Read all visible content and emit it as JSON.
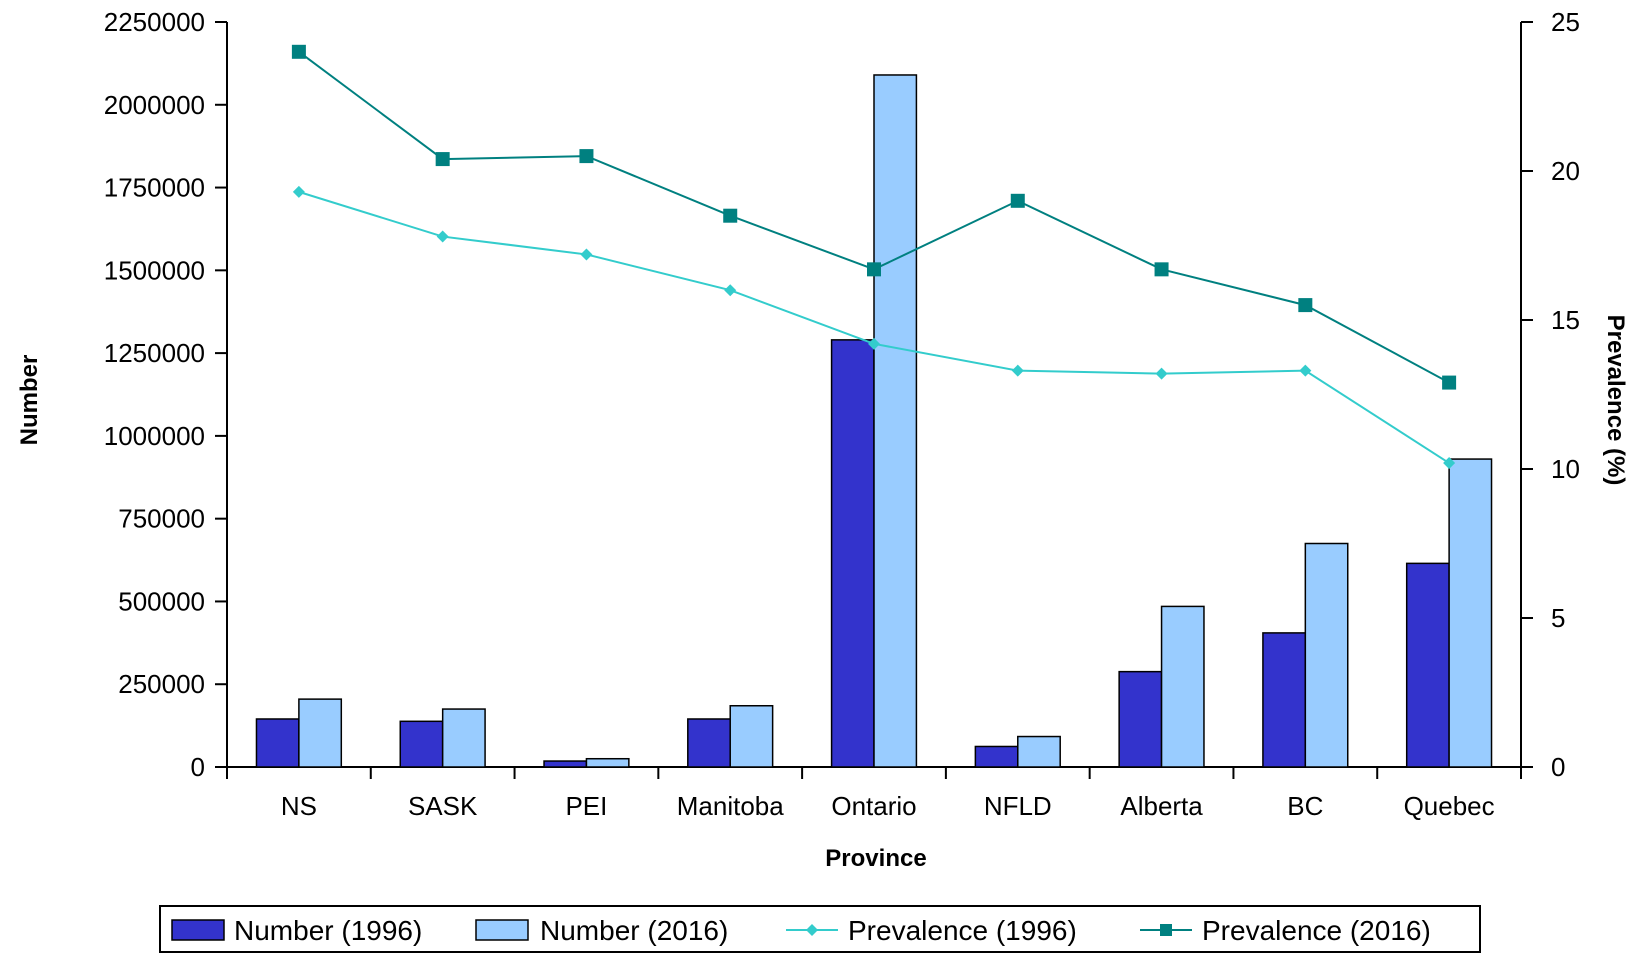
{
  "chart_data": {
    "type": "bar",
    "categories": [
      "NS",
      "SASK",
      "PEI",
      "Manitoba",
      "Ontario",
      "NFLD",
      "Alberta",
      "BC",
      "Quebec"
    ],
    "xlabel": "Province",
    "ylabel": "Number",
    "y2label": "Prevalence (%)",
    "ylim": [
      0,
      2250000
    ],
    "y2lim": [
      0,
      25
    ],
    "yticks": [
      "0",
      "250000",
      "500000",
      "750000",
      "1000000",
      "1250000",
      "1500000",
      "1750000",
      "2000000",
      "2250000"
    ],
    "y2ticks": [
      "0",
      "5",
      "10",
      "15",
      "20",
      "25"
    ],
    "grid": false,
    "legend_position": "bottom",
    "series": [
      {
        "name": "Number (1996)",
        "kind": "bar",
        "color": "#3333cc",
        "values": [
          145000,
          138000,
          18000,
          145000,
          1290000,
          62000,
          288000,
          405000,
          615000
        ]
      },
      {
        "name": "Number (2016)",
        "kind": "bar",
        "color": "#99ccff",
        "values": [
          205000,
          175000,
          25000,
          185000,
          2090000,
          92000,
          485000,
          675000,
          930000
        ]
      },
      {
        "name": "Prevalence (1996)",
        "kind": "line",
        "axis": "right",
        "marker": "diamond",
        "color": "#33cccc",
        "values": [
          19.3,
          17.8,
          17.2,
          16.0,
          14.2,
          13.3,
          13.2,
          13.3,
          10.2
        ]
      },
      {
        "name": "Prevalence (2016)",
        "kind": "line",
        "axis": "right",
        "marker": "square",
        "color": "#008080",
        "values": [
          24.0,
          20.4,
          20.5,
          18.5,
          16.7,
          19.0,
          16.7,
          15.5,
          12.9
        ]
      }
    ]
  }
}
